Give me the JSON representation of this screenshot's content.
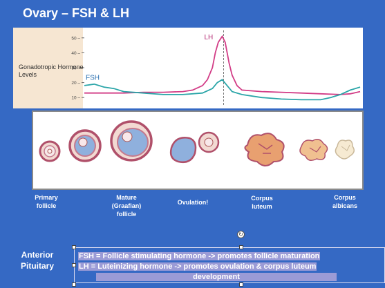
{
  "slide": {
    "title": "Ovary – FSH & LH",
    "anterior_pituitary": "Anterior Pituitary",
    "fsh_definition": "FSH = Follicle stimulating hormone -> promotes follicle maturation",
    "lh_definition_line1": "LH = Luteinizing hormone -> promotes ovulation & corpus luteum",
    "lh_definition_line2": "development",
    "rotate_handle_glyph": "↻"
  },
  "chart_data": {
    "type": "line",
    "ylabel": "Gonadotropic Hormone Levels",
    "yticks": [
      10,
      20,
      30,
      40,
      50
    ],
    "ylim": [
      5,
      55
    ],
    "xlim": [
      0,
      28
    ],
    "grid": false,
    "marker_line_x": 14,
    "series": [
      {
        "name": "LH",
        "color": "#d23c86",
        "x": [
          0,
          2,
          4,
          6,
          8,
          10,
          11,
          12,
          12.5,
          13,
          13.3,
          13.6,
          14,
          14.3,
          14.7,
          15,
          15.5,
          16,
          18,
          20,
          22,
          24,
          26,
          27,
          28
        ],
        "y": [
          13,
          13,
          13,
          13.5,
          13.5,
          14,
          15,
          18,
          22,
          30,
          40,
          47,
          51,
          47,
          33,
          25,
          18,
          15,
          14,
          13.5,
          13,
          12.5,
          12,
          12.5,
          14
        ]
      },
      {
        "name": "FSH",
        "color": "#2aa5a8",
        "x": [
          0,
          1,
          2,
          3,
          4,
          6,
          8,
          10,
          12,
          13,
          13.5,
          14,
          14.5,
          15,
          16,
          18,
          20,
          22,
          24,
          25,
          26,
          27,
          28
        ],
        "y": [
          18,
          19,
          17,
          16,
          14,
          13,
          12,
          12,
          13,
          16,
          20,
          22,
          18,
          14,
          12,
          10,
          9,
          8.5,
          8.5,
          10,
          12,
          15,
          17
        ]
      }
    ],
    "stages": [
      "Primary\nfollicle",
      "Mature\n(Graafian)\nfollicle",
      "Ovulation!",
      "Corpus\nluteum",
      "Corpus\nalbicans"
    ]
  },
  "colors": {
    "background": "#3569c4",
    "lh": "#d23c86",
    "fsh": "#2aa5a8",
    "highlight": "#9b9bd6",
    "chart_band": "#f6e6d2",
    "follicle_ring": "#b0506a",
    "follicle_fluid": "#8fb0dd",
    "corpus_luteum": "#e8a070"
  }
}
